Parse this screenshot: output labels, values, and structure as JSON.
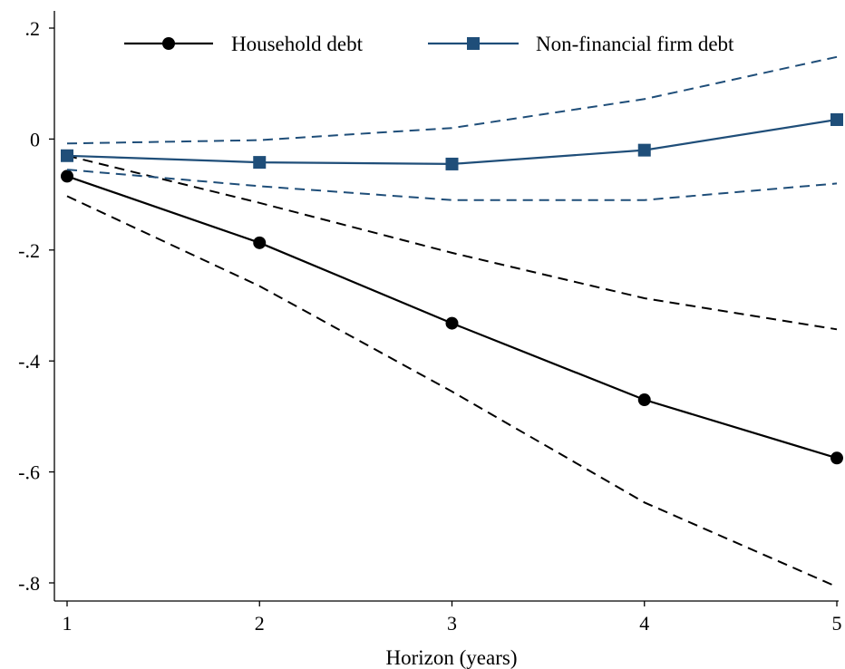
{
  "chart_data": {
    "type": "line",
    "title": "",
    "xlabel": "Horizon (years)",
    "ylabel": "",
    "x": [
      1,
      2,
      3,
      4,
      5
    ],
    "x_tick_labels": [
      "1",
      "2",
      "3",
      "4",
      "5"
    ],
    "xlim": [
      1,
      5
    ],
    "ylim": [
      -0.82,
      0.22
    ],
    "y_ticks": [
      0.2,
      0,
      -0.2,
      -0.4,
      -0.6,
      -0.8
    ],
    "y_tick_labels": [
      ".2",
      "0",
      "-.2",
      "-.4",
      "-.6",
      "-.8"
    ],
    "grid": false,
    "legend_position": "top",
    "series": [
      {
        "name": "Household debt",
        "marker": "circle",
        "color": "#000000",
        "values": [
          -0.067,
          -0.187,
          -0.332,
          -0.47,
          -0.575
        ],
        "ci_upper": [
          -0.03,
          -0.115,
          -0.205,
          -0.287,
          -0.343
        ],
        "ci_lower": [
          -0.103,
          -0.265,
          -0.455,
          -0.655,
          -0.807
        ]
      },
      {
        "name": "Non-financial firm debt",
        "marker": "square",
        "color": "#1f4e79",
        "values": [
          -0.03,
          -0.042,
          -0.045,
          -0.02,
          0.035
        ],
        "ci_upper": [
          -0.008,
          -0.002,
          0.02,
          0.072,
          0.148
        ],
        "ci_lower": [
          -0.055,
          -0.085,
          -0.11,
          -0.11,
          -0.08
        ]
      }
    ]
  }
}
